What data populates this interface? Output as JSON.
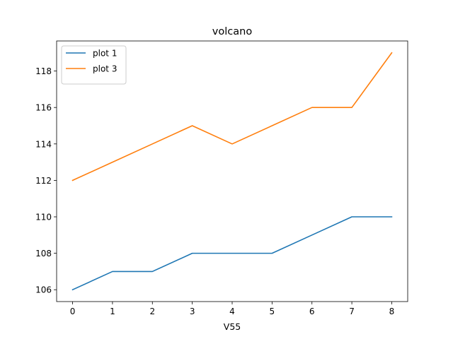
{
  "chart_data": {
    "type": "line",
    "title": "volcano",
    "xlabel": "V55",
    "ylabel": "",
    "x": [
      0,
      1,
      2,
      3,
      4,
      5,
      6,
      7,
      8
    ],
    "xticks": [
      0,
      1,
      2,
      3,
      4,
      5,
      6,
      7,
      8
    ],
    "yticks": [
      106,
      108,
      110,
      112,
      114,
      116,
      118
    ],
    "xlim": [
      -0.4,
      8.4
    ],
    "ylim": [
      105.35,
      119.65
    ],
    "grid": false,
    "legend_position": "top-left",
    "series": [
      {
        "name": "plot 1",
        "color": "#1f77b4",
        "values": [
          106,
          107,
          107,
          108,
          108,
          108,
          109,
          110,
          110
        ]
      },
      {
        "name": "plot 3",
        "color": "#ff7f0e",
        "values": [
          112,
          113,
          114,
          115,
          114,
          115,
          116,
          116,
          119
        ]
      }
    ]
  }
}
